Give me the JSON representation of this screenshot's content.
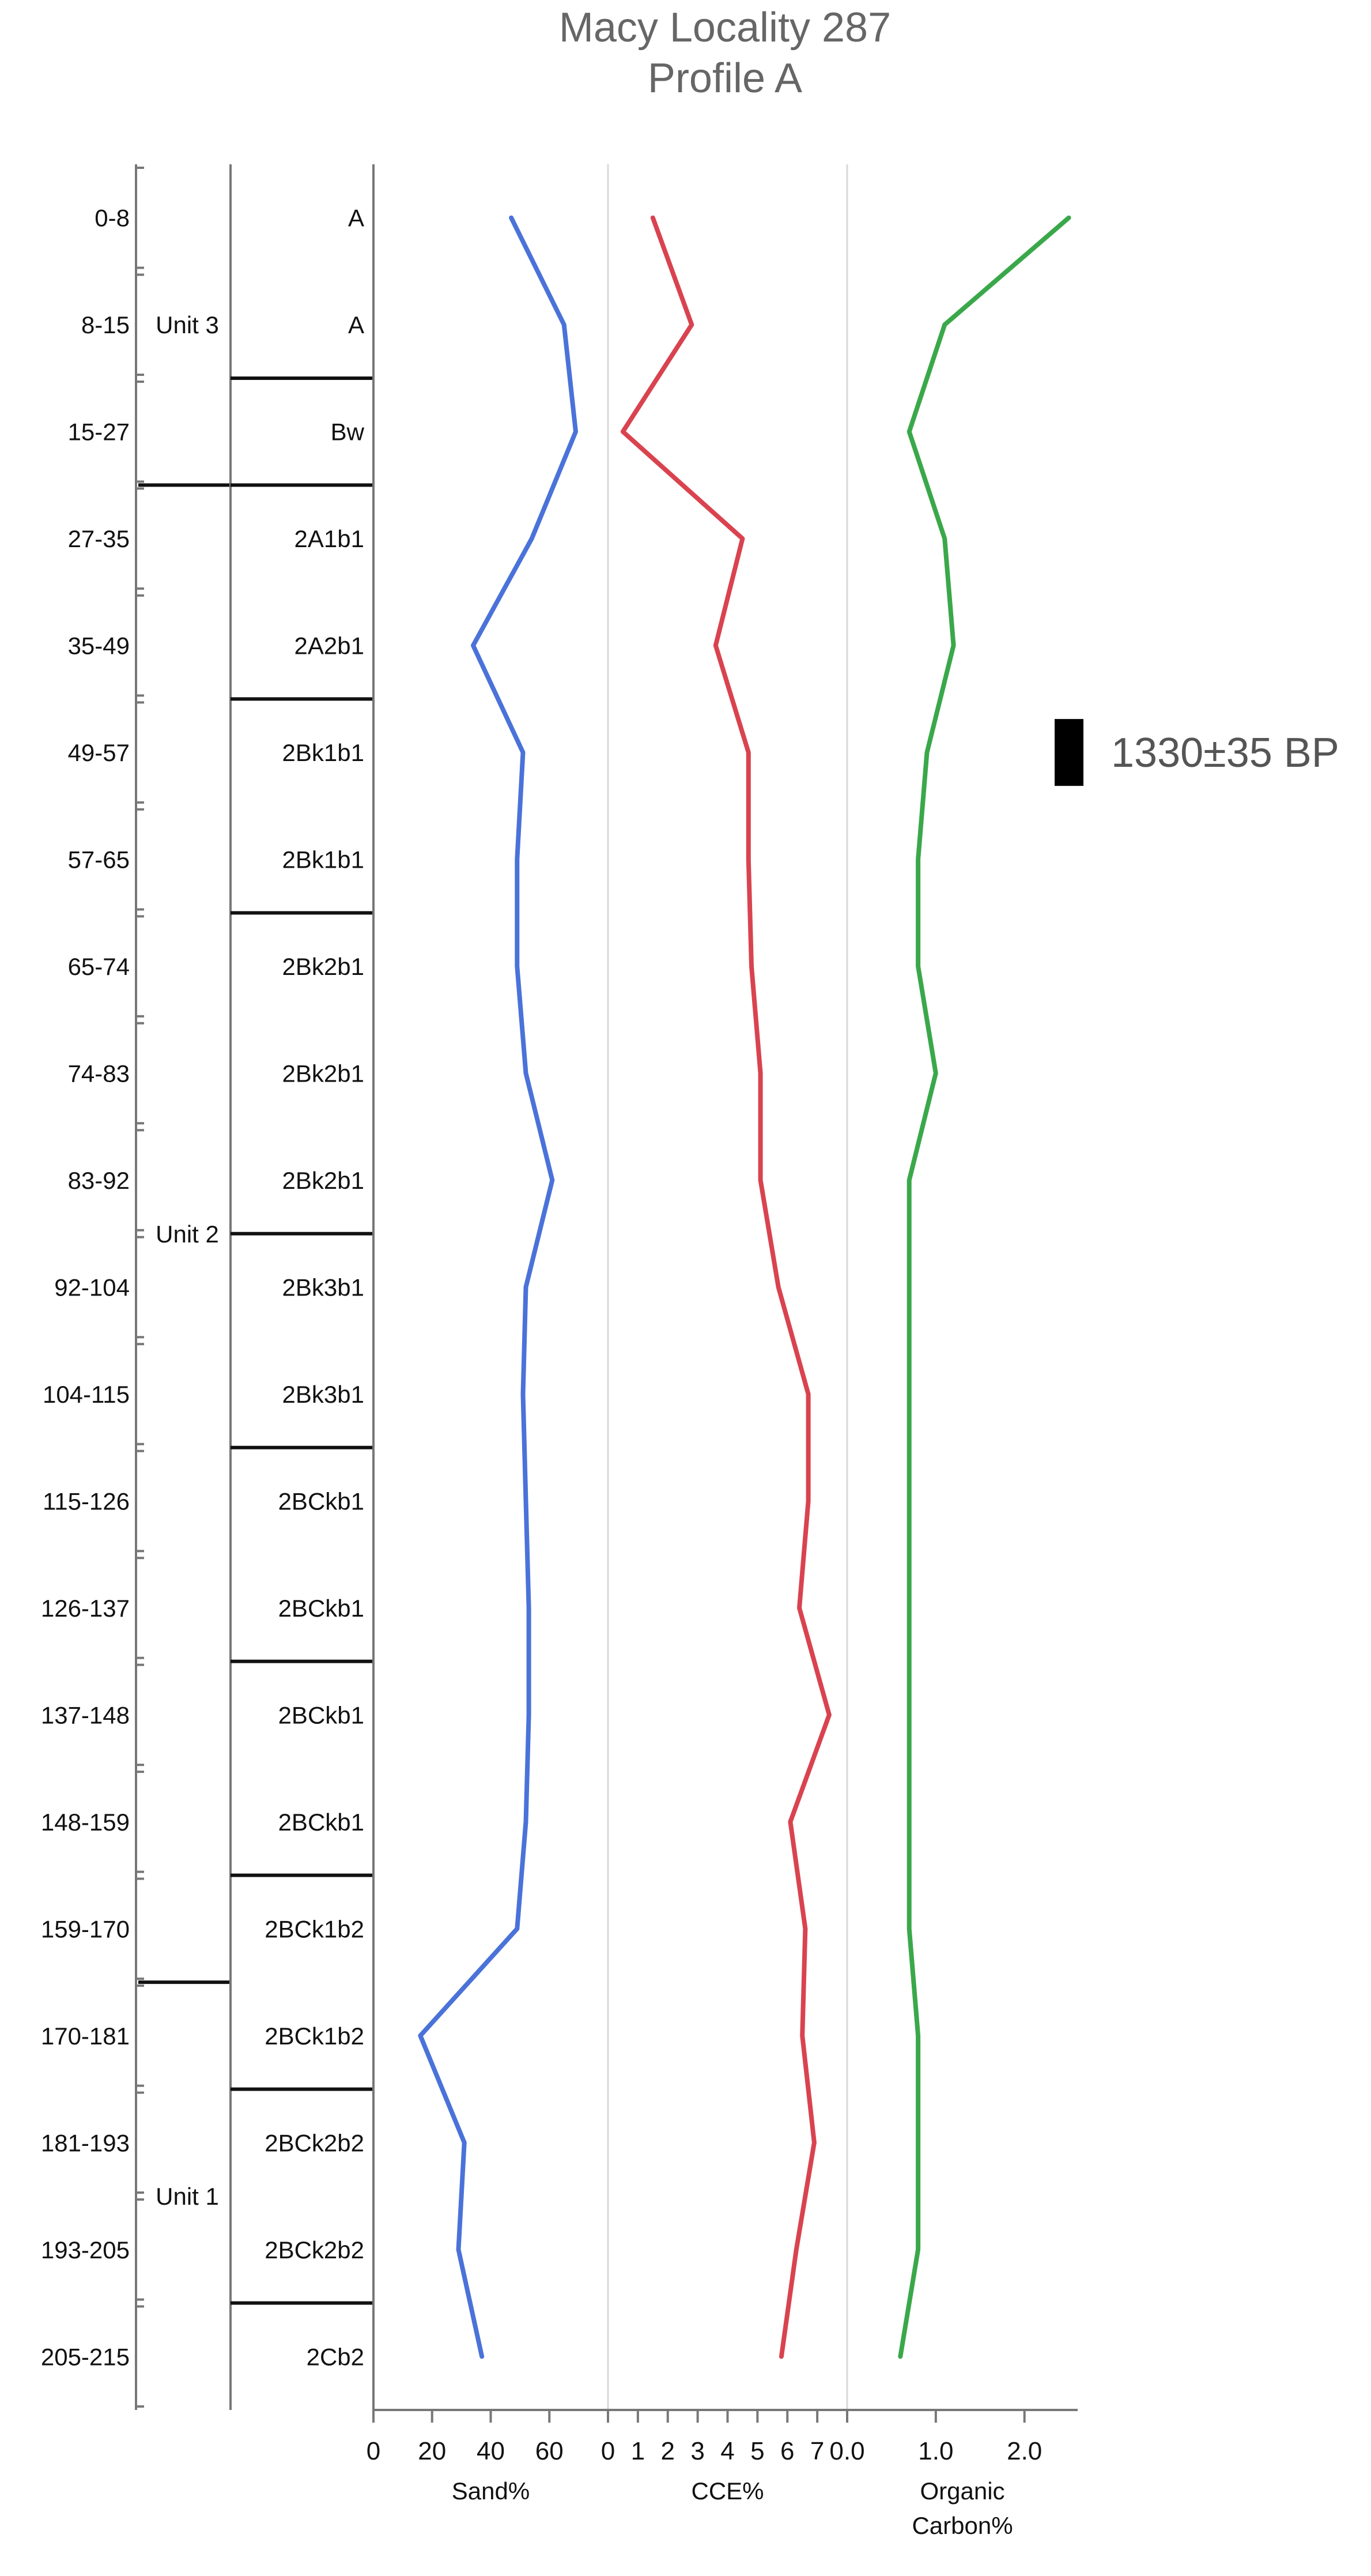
{
  "chart_data": {
    "type": "line",
    "title": "Macy Locality 287",
    "subtitle": "Profile A",
    "depths": [
      "0-8",
      "8-15",
      "15-27",
      "27-35",
      "35-49",
      "49-57",
      "57-65",
      "65-74",
      "74-83",
      "83-92",
      "92-104",
      "104-115",
      "115-126",
      "126-137",
      "137-148",
      "148-159",
      "159-170",
      "170-181",
      "181-193",
      "193-205",
      "205-215"
    ],
    "horizons": [
      "A",
      "A",
      "Bw",
      "2A1b1",
      "2A2b1",
      "2Bk1b1",
      "2Bk1b1",
      "2Bk2b1",
      "2Bk2b1",
      "2Bk2b1",
      "2Bk3b1",
      "2Bk3b1",
      "2BCkb1",
      "2BCkb1",
      "2BCkb1",
      "2BCkb1",
      "2BCk1b2",
      "2BCk1b2",
      "2BCk2b2",
      "2BCk2b2",
      "2Cb2"
    ],
    "horizon_boundaries_after": [
      1,
      2,
      4,
      6,
      9,
      11,
      13,
      15,
      17,
      19
    ],
    "units": [
      {
        "label": "Unit 3",
        "from": 0,
        "to": 2
      },
      {
        "label": "Unit 2",
        "from": 3,
        "to": 16
      },
      {
        "label": "Unit 1",
        "from": 17,
        "to": 20
      }
    ],
    "panels": [
      {
        "name": "Sand%",
        "xlabel": "Sand%",
        "color": "#4a72d9",
        "xlim": [
          0,
          80
        ],
        "ticks": [
          0,
          20,
          40,
          60
        ],
        "tick_labels": [
          "0",
          "20",
          "40",
          "60"
        ],
        "values": [
          47,
          65,
          69,
          54,
          34,
          51,
          49,
          49,
          52,
          61,
          52,
          51,
          52,
          53,
          53,
          52,
          49,
          16,
          31,
          29,
          37
        ]
      },
      {
        "name": "CCE%",
        "xlabel": "CCE%",
        "color": "#d9434f",
        "xlim": [
          0,
          8
        ],
        "ticks": [
          0,
          1,
          2,
          3,
          4,
          5,
          6,
          7
        ],
        "tick_labels": [
          "0",
          "1",
          "2",
          "3",
          "4",
          "5",
          "6",
          "7"
        ],
        "values": [
          1.5,
          2.8,
          0.5,
          4.5,
          3.6,
          4.7,
          4.7,
          4.8,
          5.1,
          5.1,
          5.7,
          6.7,
          6.7,
          6.4,
          7.4,
          6.1,
          6.6,
          6.5,
          6.9,
          6.3,
          5.8
        ]
      },
      {
        "name": "Organic Carbon%",
        "xlabel": "Organic",
        "xlabel2": "Carbon%",
        "color": "#3aa84a",
        "xlim": [
          0,
          2.6
        ],
        "ticks": [
          0,
          1,
          2
        ],
        "tick_labels": [
          "0.0",
          "1.0",
          "2.0"
        ],
        "values": [
          2.5,
          1.1,
          0.7,
          1.1,
          1.2,
          0.9,
          0.8,
          0.8,
          1.0,
          0.7,
          0.7,
          0.7,
          0.7,
          0.7,
          0.7,
          0.7,
          0.7,
          0.8,
          0.8,
          0.8,
          0.6
        ]
      }
    ],
    "annotation": {
      "text": "1330±35 BP",
      "depth_index": 5
    },
    "grid": false
  }
}
